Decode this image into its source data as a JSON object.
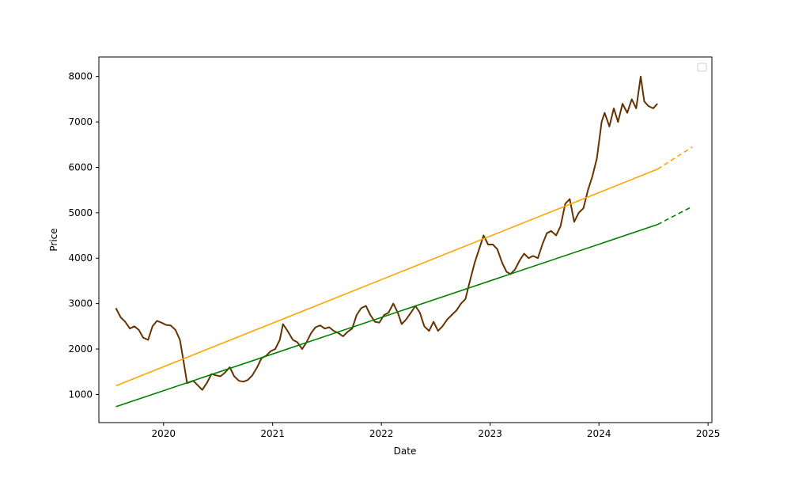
{
  "chart_data": {
    "type": "line",
    "xlabel": "Date",
    "ylabel": "Price",
    "x_ticks": [
      "2020",
      "2021",
      "2022",
      "2023",
      "2024",
      "2025"
    ],
    "y_ticks": [
      "1000",
      "2000",
      "3000",
      "4000",
      "5000",
      "6000",
      "7000",
      "8000"
    ],
    "xlim": [
      "2019-05-29",
      "2025-01-14"
    ],
    "ylim": [
      380,
      8430
    ],
    "legend": "top-right",
    "series": [
      {
        "color": "#663300",
        "style": "solid",
        "points": [
          [
            "2019-07-25",
            2900
          ],
          [
            "2019-08-10",
            2700
          ],
          [
            "2019-08-25",
            2600
          ],
          [
            "2019-09-10",
            2450
          ],
          [
            "2019-09-25",
            2500
          ],
          [
            "2019-10-10",
            2420
          ],
          [
            "2019-10-25",
            2250
          ],
          [
            "2019-11-10",
            2200
          ],
          [
            "2019-11-25",
            2500
          ],
          [
            "2019-12-10",
            2620
          ],
          [
            "2019-12-25",
            2580
          ],
          [
            "2020-01-10",
            2530
          ],
          [
            "2020-01-25",
            2520
          ],
          [
            "2020-02-10",
            2420
          ],
          [
            "2020-02-25",
            2200
          ],
          [
            "2020-03-10",
            1650
          ],
          [
            "2020-03-20",
            1250
          ],
          [
            "2020-04-10",
            1300
          ],
          [
            "2020-04-25",
            1200
          ],
          [
            "2020-05-10",
            1100
          ],
          [
            "2020-05-25",
            1250
          ],
          [
            "2020-06-10",
            1450
          ],
          [
            "2020-06-25",
            1420
          ],
          [
            "2020-07-10",
            1400
          ],
          [
            "2020-07-25",
            1480
          ],
          [
            "2020-08-10",
            1600
          ],
          [
            "2020-08-25",
            1400
          ],
          [
            "2020-09-10",
            1300
          ],
          [
            "2020-09-25",
            1280
          ],
          [
            "2020-10-10",
            1320
          ],
          [
            "2020-10-25",
            1420
          ],
          [
            "2020-11-10",
            1600
          ],
          [
            "2020-11-25",
            1800
          ],
          [
            "2020-12-10",
            1850
          ],
          [
            "2020-12-25",
            1950
          ],
          [
            "2021-01-10",
            2000
          ],
          [
            "2021-01-25",
            2200
          ],
          [
            "2021-02-05",
            2550
          ],
          [
            "2021-02-20",
            2400
          ],
          [
            "2021-03-10",
            2200
          ],
          [
            "2021-03-25",
            2150
          ],
          [
            "2021-04-10",
            2000
          ],
          [
            "2021-04-25",
            2150
          ],
          [
            "2021-05-10",
            2350
          ],
          [
            "2021-05-25",
            2480
          ],
          [
            "2021-06-10",
            2520
          ],
          [
            "2021-06-25",
            2450
          ],
          [
            "2021-07-10",
            2480
          ],
          [
            "2021-07-25",
            2400
          ],
          [
            "2021-08-10",
            2350
          ],
          [
            "2021-08-25",
            2280
          ],
          [
            "2021-09-10",
            2380
          ],
          [
            "2021-09-25",
            2450
          ],
          [
            "2021-10-10",
            2750
          ],
          [
            "2021-10-25",
            2900
          ],
          [
            "2021-11-10",
            2950
          ],
          [
            "2021-11-25",
            2750
          ],
          [
            "2021-12-10",
            2600
          ],
          [
            "2021-12-25",
            2580
          ],
          [
            "2022-01-10",
            2750
          ],
          [
            "2022-01-25",
            2800
          ],
          [
            "2022-02-10",
            3000
          ],
          [
            "2022-02-25",
            2800
          ],
          [
            "2022-03-10",
            2550
          ],
          [
            "2022-03-25",
            2650
          ],
          [
            "2022-04-10",
            2800
          ],
          [
            "2022-04-25",
            2950
          ],
          [
            "2022-05-10",
            2800
          ],
          [
            "2022-05-25",
            2500
          ],
          [
            "2022-06-10",
            2400
          ],
          [
            "2022-06-25",
            2600
          ],
          [
            "2022-07-10",
            2400
          ],
          [
            "2022-07-25",
            2500
          ],
          [
            "2022-08-10",
            2650
          ],
          [
            "2022-08-25",
            2750
          ],
          [
            "2022-09-10",
            2850
          ],
          [
            "2022-09-25",
            3000
          ],
          [
            "2022-10-10",
            3100
          ],
          [
            "2022-10-25",
            3500
          ],
          [
            "2022-11-10",
            3900
          ],
          [
            "2022-11-25",
            4200
          ],
          [
            "2022-12-10",
            4500
          ],
          [
            "2022-12-25",
            4300
          ],
          [
            "2023-01-10",
            4300
          ],
          [
            "2023-01-25",
            4200
          ],
          [
            "2023-02-10",
            3900
          ],
          [
            "2023-02-25",
            3700
          ],
          [
            "2023-03-10",
            3650
          ],
          [
            "2023-03-25",
            3750
          ],
          [
            "2023-04-10",
            3950
          ],
          [
            "2023-04-25",
            4100
          ],
          [
            "2023-05-10",
            4000
          ],
          [
            "2023-05-25",
            4050
          ],
          [
            "2023-06-10",
            4000
          ],
          [
            "2023-06-25",
            4300
          ],
          [
            "2023-07-10",
            4550
          ],
          [
            "2023-07-25",
            4600
          ],
          [
            "2023-08-10",
            4500
          ],
          [
            "2023-08-25",
            4700
          ],
          [
            "2023-09-10",
            5200
          ],
          [
            "2023-09-25",
            5300
          ],
          [
            "2023-10-10",
            4800
          ],
          [
            "2023-10-25",
            5000
          ],
          [
            "2023-11-10",
            5100
          ],
          [
            "2023-11-25",
            5500
          ],
          [
            "2023-12-10",
            5800
          ],
          [
            "2023-12-25",
            6200
          ],
          [
            "2024-01-10",
            7000
          ],
          [
            "2024-01-20",
            7200
          ],
          [
            "2024-02-05",
            6900
          ],
          [
            "2024-02-20",
            7300
          ],
          [
            "2024-03-05",
            7000
          ],
          [
            "2024-03-20",
            7400
          ],
          [
            "2024-04-05",
            7200
          ],
          [
            "2024-04-20",
            7500
          ],
          [
            "2024-05-05",
            7300
          ],
          [
            "2024-05-20",
            8000
          ],
          [
            "2024-06-01",
            7450
          ],
          [
            "2024-06-15",
            7350
          ],
          [
            "2024-07-01",
            7300
          ],
          [
            "2024-07-15",
            7400
          ]
        ]
      },
      {
        "color": "orange",
        "style": "solid",
        "points": [
          [
            "2019-07-25",
            1190
          ],
          [
            "2024-07-15",
            5960
          ]
        ]
      },
      {
        "color": "orange",
        "style": "dashed",
        "points": [
          [
            "2024-07-15",
            5960
          ],
          [
            "2024-11-10",
            6450
          ]
        ]
      },
      {
        "color": "green",
        "style": "solid",
        "points": [
          [
            "2019-07-25",
            730
          ],
          [
            "2024-07-15",
            4740
          ]
        ]
      },
      {
        "color": "green",
        "style": "dashed",
        "points": [
          [
            "2024-07-15",
            4740
          ],
          [
            "2024-11-10",
            5140
          ]
        ]
      }
    ]
  }
}
